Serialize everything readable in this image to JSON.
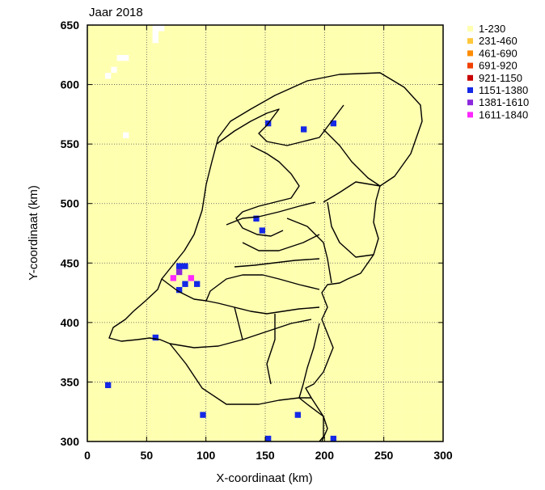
{
  "chart_data": {
    "type": "heatmap",
    "title": "Jaar 2018",
    "xlabel": "X-coordinaat (km)",
    "ylabel": "Y-coordinaat (km)",
    "xlim": [
      0,
      300
    ],
    "ylim": [
      300,
      650
    ],
    "xticks": [
      "0",
      "50",
      "100",
      "150",
      "200",
      "250",
      "300"
    ],
    "yticks": [
      "300",
      "350",
      "400",
      "450",
      "500",
      "550",
      "600",
      "650"
    ],
    "cell_size_km": 5,
    "grid": true,
    "legend_position": "top-right",
    "legend": [
      {
        "label": "1-230",
        "color": "#ffffb0"
      },
      {
        "label": "231-460",
        "color": "#ffc83c"
      },
      {
        "label": "461-690",
        "color": "#ff8c00"
      },
      {
        "label": "691-920",
        "color": "#f04000"
      },
      {
        "label": "921-1150",
        "color": "#c80000"
      },
      {
        "label": "1151-1380",
        "color": "#1428e6"
      },
      {
        "label": "1381-1610",
        "color": "#8c28dc"
      },
      {
        "label": "1611-1840",
        "color": "#ff28ff"
      }
    ],
    "background_class": "1-230",
    "empty_cells": [
      [
        55,
        645
      ],
      [
        60,
        645
      ],
      [
        55,
        640
      ],
      [
        55,
        635
      ],
      [
        25,
        620
      ],
      [
        30,
        620
      ],
      [
        20,
        610
      ],
      [
        15,
        605
      ],
      [
        30,
        555
      ]
    ],
    "hotspots": [
      {
        "x": 150,
        "y": 565,
        "class": "1151-1380"
      },
      {
        "x": 180,
        "y": 562,
        "class": "1151-1380"
      },
      {
        "x": 205,
        "y": 568,
        "class": "1151-1380"
      },
      {
        "x": 140,
        "y": 485,
        "class": "1151-1380"
      },
      {
        "x": 145,
        "y": 478,
        "class": "1151-1380"
      },
      {
        "x": 78,
        "y": 447,
        "class": "1151-1380"
      },
      {
        "x": 83,
        "y": 447,
        "class": "1151-1380"
      },
      {
        "x": 75,
        "y": 442,
        "class": "1381-1610"
      },
      {
        "x": 72,
        "y": 437,
        "class": "1611-1840"
      },
      {
        "x": 80,
        "y": 432,
        "class": "1151-1380"
      },
      {
        "x": 88,
        "y": 437,
        "class": "1611-1840"
      },
      {
        "x": 75,
        "y": 427,
        "class": "1151-1380"
      },
      {
        "x": 92,
        "y": 432,
        "class": "1151-1380"
      },
      {
        "x": 55,
        "y": 387,
        "class": "1151-1380"
      },
      {
        "x": 15,
        "y": 347,
        "class": "1151-1380"
      },
      {
        "x": 95,
        "y": 322,
        "class": "1151-1380"
      },
      {
        "x": 175,
        "y": 322,
        "class": "1151-1380"
      },
      {
        "x": 205,
        "y": 302,
        "class": "1151-1380"
      },
      {
        "x": 150,
        "y": 302,
        "class": "1151-1380"
      }
    ]
  }
}
